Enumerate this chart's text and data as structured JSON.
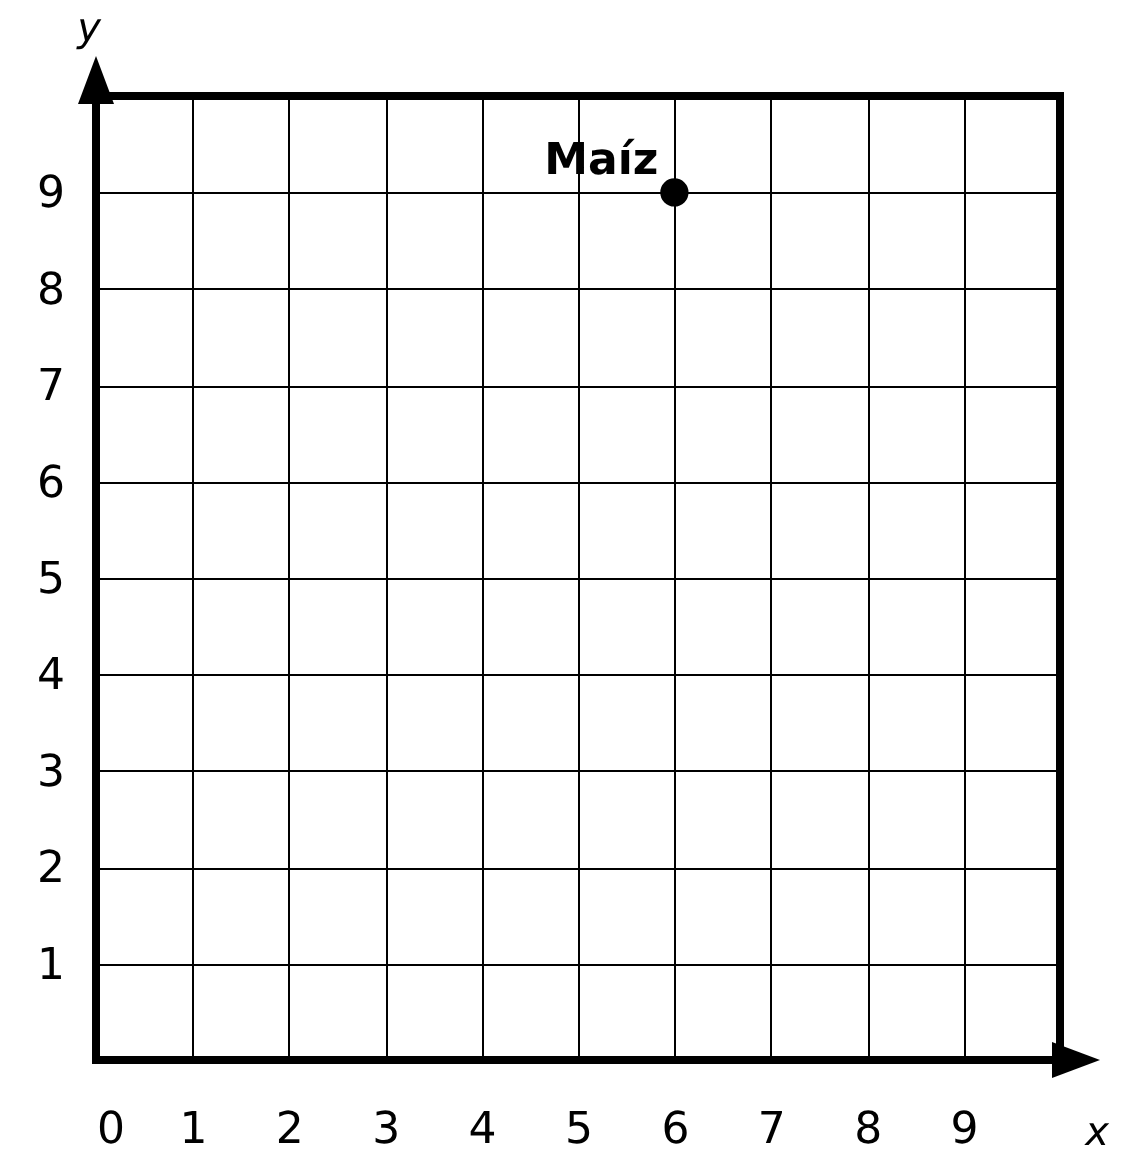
{
  "chart_data": {
    "type": "scatter",
    "xlabel": "x",
    "ylabel": "y",
    "x": [
      6
    ],
    "values": [
      9
    ],
    "color": "#000000",
    "marker": "circle",
    "annotations": [
      {
        "text": "Maíz",
        "x": 6,
        "y": 9
      }
    ],
    "xlim": [
      0,
      10
    ],
    "ylim": [
      0,
      10
    ],
    "xticks": [
      0,
      1,
      2,
      3,
      4,
      5,
      6,
      7,
      8,
      9
    ],
    "yticks": [
      {
        "value": 0,
        "label": null
      },
      1,
      2,
      3,
      4,
      5,
      6,
      7,
      8,
      9
    ],
    "grid": true
  }
}
